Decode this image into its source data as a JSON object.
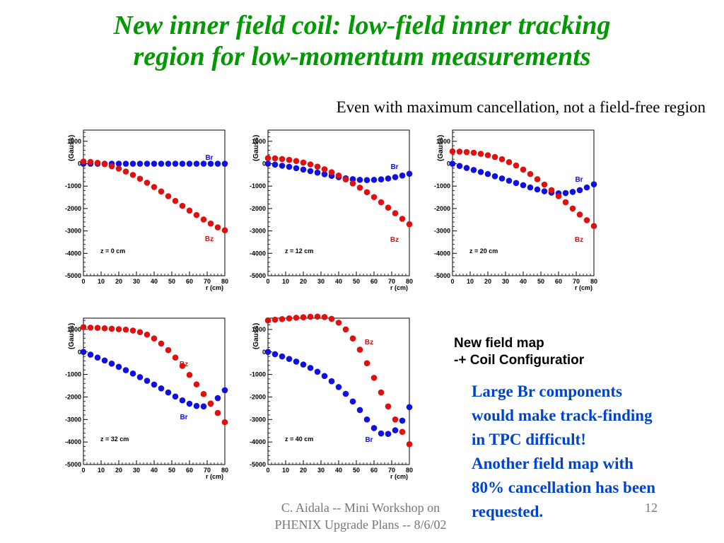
{
  "title": {
    "line1": "New inner field coil: low-field inner tracking",
    "line2": "region for low-momentum measurements"
  },
  "subtitle": "Even with maximum cancellation, not a field-free region",
  "sidenote": {
    "heading1": "New field map",
    "heading2": "-+ Coil Configuratior",
    "line1": "Large Br components",
    "line2": "would make track-finding",
    "line3": "in TPC difficult!",
    "line4": "Another field map with",
    "line5": "80% cancellation has been",
    "line6": "requested."
  },
  "footer": {
    "line1": "C. Aidala -- Mini Workshop on",
    "line2": "PHENIX Upgrade Plans -- 8/6/02"
  },
  "page_number": "12",
  "colors": {
    "br": "#1010e0",
    "bz": "#e01010",
    "title": "#009900",
    "note": "#0044cc"
  },
  "chart_data": [
    {
      "type": "scatter",
      "annotation": "z = 0 cm",
      "xlabel": "r (cm)",
      "ylabel": "(Gauss)",
      "xlim": [
        0,
        80
      ],
      "ylim": [
        -5000,
        1500
      ],
      "xticks": [
        "0",
        "10",
        "20",
        "30",
        "40",
        "50",
        "60",
        "70",
        "80"
      ],
      "yticks": [
        "1000",
        "0",
        "-1000",
        "-2000",
        "-3000",
        "-4000",
        "-5000"
      ],
      "x": [
        0,
        4,
        8,
        12,
        16,
        20,
        24,
        28,
        32,
        36,
        40,
        44,
        48,
        52,
        56,
        60,
        64,
        68,
        72,
        76,
        80
      ],
      "series": [
        {
          "name": "Br",
          "values": [
            0,
            0,
            0,
            0,
            0,
            0,
            0,
            0,
            0,
            0,
            0,
            0,
            0,
            0,
            0,
            0,
            0,
            0,
            0,
            0,
            0
          ]
        },
        {
          "name": "Bz",
          "values": [
            100,
            80,
            40,
            -20,
            -110,
            -220,
            -350,
            -500,
            -670,
            -850,
            -1040,
            -1240,
            -1450,
            -1660,
            -1880,
            -2090,
            -2290,
            -2490,
            -2670,
            -2840,
            -2970
          ]
        }
      ]
    },
    {
      "type": "scatter",
      "annotation": "z = 12 cm",
      "xlabel": "r (cm)",
      "ylabel": "(Gauss)",
      "xlim": [
        0,
        80
      ],
      "ylim": [
        -5000,
        1500
      ],
      "xticks": [
        "0",
        "10",
        "20",
        "30",
        "40",
        "50",
        "60",
        "70",
        "80"
      ],
      "yticks": [
        "1000",
        "0",
        "-1000",
        "-2000",
        "-3000",
        "-4000",
        "-5000"
      ],
      "x": [
        0,
        4,
        8,
        12,
        16,
        20,
        24,
        28,
        32,
        36,
        40,
        44,
        48,
        52,
        56,
        60,
        64,
        68,
        72,
        76,
        80
      ],
      "series": [
        {
          "name": "Br",
          "values": [
            0,
            -40,
            -90,
            -140,
            -200,
            -260,
            -330,
            -400,
            -470,
            -540,
            -600,
            -650,
            -690,
            -720,
            -730,
            -720,
            -700,
            -660,
            -600,
            -530,
            -450
          ]
        },
        {
          "name": "Bz",
          "values": [
            250,
            240,
            210,
            170,
            120,
            50,
            -30,
            -130,
            -250,
            -380,
            -530,
            -700,
            -880,
            -1070,
            -1270,
            -1490,
            -1720,
            -1960,
            -2210,
            -2460,
            -2700
          ]
        }
      ]
    },
    {
      "type": "scatter",
      "annotation": "z = 20 cm",
      "xlabel": "r (cm)",
      "ylabel": "(Gauss)",
      "xlim": [
        0,
        80
      ],
      "ylim": [
        -5000,
        1500
      ],
      "xticks": [
        "0",
        "10",
        "20",
        "30",
        "40",
        "50",
        "60",
        "70",
        "80"
      ],
      "yticks": [
        "1000",
        "0",
        "-1000",
        "-2000",
        "-3000",
        "-4000",
        "-5000"
      ],
      "x": [
        0,
        4,
        8,
        12,
        16,
        20,
        24,
        28,
        32,
        36,
        40,
        44,
        48,
        52,
        56,
        60,
        64,
        68,
        72,
        76,
        80
      ],
      "series": [
        {
          "name": "Br",
          "values": [
            0,
            -100,
            -190,
            -280,
            -370,
            -460,
            -560,
            -660,
            -760,
            -860,
            -960,
            -1060,
            -1150,
            -1230,
            -1290,
            -1320,
            -1310,
            -1260,
            -1180,
            -1060,
            -920
          ]
        },
        {
          "name": "Bz",
          "values": [
            550,
            540,
            520,
            490,
            440,
            380,
            300,
            200,
            70,
            -80,
            -260,
            -460,
            -690,
            -930,
            -1180,
            -1450,
            -1720,
            -2000,
            -2270,
            -2520,
            -2780
          ]
        }
      ]
    },
    {
      "type": "scatter",
      "annotation": "z = 32 cm",
      "xlabel": "r (cm)",
      "ylabel": "(Gauss)",
      "xlim": [
        0,
        80
      ],
      "ylim": [
        -5000,
        1500
      ],
      "xticks": [
        "0",
        "10",
        "20",
        "30",
        "40",
        "50",
        "60",
        "70",
        "80"
      ],
      "yticks": [
        "1000",
        "0",
        "-1000",
        "-2000",
        "-3000",
        "-4000",
        "-5000"
      ],
      "x": [
        0,
        4,
        8,
        12,
        16,
        20,
        24,
        28,
        32,
        36,
        40,
        44,
        48,
        52,
        56,
        60,
        64,
        68,
        72,
        76,
        80
      ],
      "series": [
        {
          "name": "Br",
          "values": [
            0,
            -120,
            -250,
            -380,
            -520,
            -660,
            -810,
            -960,
            -1120,
            -1280,
            -1450,
            -1620,
            -1800,
            -1980,
            -2150,
            -2300,
            -2400,
            -2420,
            -2300,
            -2050,
            -1700
          ]
        },
        {
          "name": "Bz",
          "values": [
            1100,
            1080,
            1070,
            1050,
            1030,
            1010,
            990,
            950,
            880,
            770,
            600,
            370,
            80,
            -250,
            -620,
            -1020,
            -1440,
            -1870,
            -2290,
            -2710,
            -3120
          ]
        }
      ]
    },
    {
      "type": "scatter",
      "annotation": "z = 40 cm",
      "xlabel": "r (cm)",
      "ylabel": "(Gauss)",
      "xlim": [
        0,
        80
      ],
      "ylim": [
        -5000,
        1500
      ],
      "xticks": [
        "0",
        "10",
        "20",
        "30",
        "40",
        "50",
        "60",
        "70",
        "80"
      ],
      "yticks": [
        "1000",
        "0",
        "-1000",
        "-2000",
        "-3000",
        "-4000",
        "-5000"
      ],
      "x": [
        0,
        4,
        8,
        12,
        16,
        20,
        24,
        28,
        32,
        36,
        40,
        44,
        48,
        52,
        56,
        60,
        64,
        68,
        72,
        76,
        80
      ],
      "series": [
        {
          "name": "Br",
          "values": [
            0,
            -100,
            -200,
            -310,
            -430,
            -560,
            -710,
            -880,
            -1070,
            -1300,
            -1560,
            -1860,
            -2200,
            -2580,
            -3000,
            -3380,
            -3620,
            -3640,
            -3480,
            -3050,
            -2450
          ]
        },
        {
          "name": "Bz",
          "values": [
            1400,
            1430,
            1460,
            1490,
            1520,
            1540,
            1560,
            1570,
            1550,
            1470,
            1300,
            1000,
            600,
            100,
            -500,
            -1150,
            -1800,
            -2420,
            -3000,
            -3550,
            -4100
          ]
        }
      ]
    }
  ]
}
